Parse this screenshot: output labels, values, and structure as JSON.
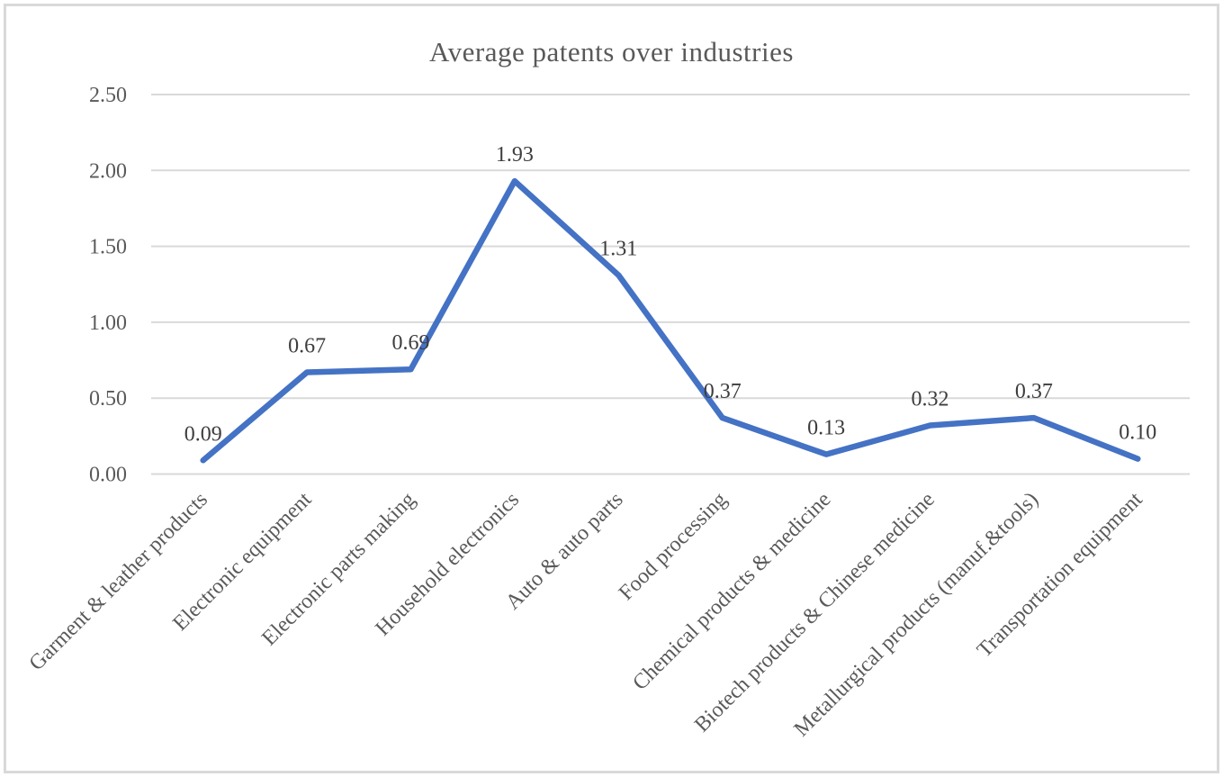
{
  "chart_data": {
    "type": "line",
    "title": "Average patents over industries",
    "categories": [
      "Garment & leather products",
      "Electronic equipment",
      "Electronic parts making",
      "Household electronics",
      "Auto & auto parts",
      "Food processing",
      "Chemical products & medicine",
      "Biotech products & Chinese medicine",
      "Metallurgical products (manuf.&tools)",
      "Transportation equipment"
    ],
    "values": [
      0.09,
      0.67,
      0.69,
      1.93,
      1.31,
      0.37,
      0.13,
      0.32,
      0.37,
      0.1
    ],
    "data_labels": [
      "0.09",
      "0.67",
      "0.69",
      "1.93",
      "1.31",
      "0.37",
      "0.13",
      "0.32",
      "0.37",
      "0.10"
    ],
    "y_ticks": [
      {
        "label": "0.00",
        "value": 0.0
      },
      {
        "label": "0.50",
        "value": 0.5
      },
      {
        "label": "1.00",
        "value": 1.0
      },
      {
        "label": "1.50",
        "value": 1.5
      },
      {
        "label": "2.00",
        "value": 2.0
      },
      {
        "label": "2.50",
        "value": 2.5
      }
    ],
    "ylim": [
      0,
      2.5
    ],
    "xlabel": "",
    "ylabel": "",
    "grid": true,
    "legend": "none"
  },
  "style": {
    "line_color": "#4472C4",
    "gridline_color": "#D9D9D9",
    "frame_border_color": "#D9D9D9",
    "title_color": "#595959",
    "axis_text_color": "#595959",
    "category_text_color": "#595959",
    "data_label_color": "#3D3D3D",
    "background": "#FFFFFF"
  }
}
